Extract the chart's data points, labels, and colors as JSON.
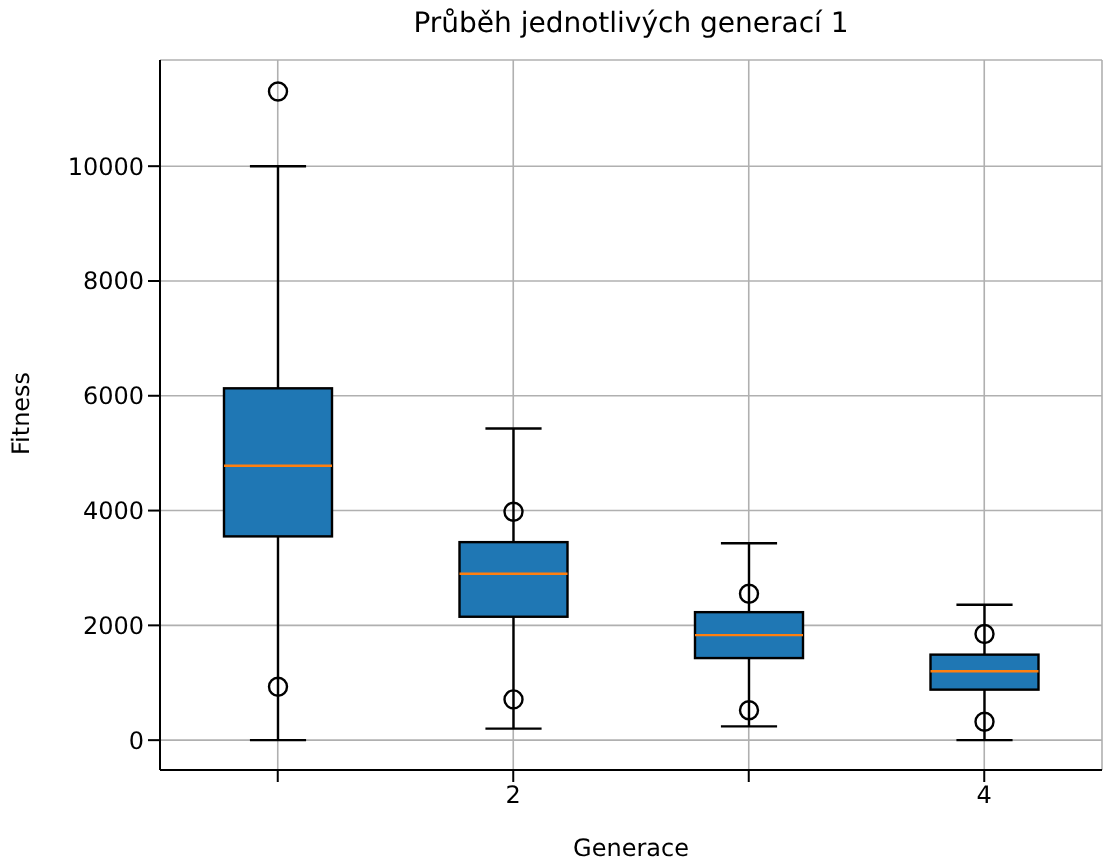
{
  "chart_data": {
    "type": "box",
    "title": "Průběh jednotlivých generací 1",
    "xlabel": "Generace",
    "ylabel": "Fitness",
    "categories": [
      null,
      "2",
      null,
      "4"
    ],
    "color": "#1f77b4",
    "boxes": [
      {
        "low": 0,
        "q1": 3550,
        "median": 4780,
        "q3": 6130,
        "high": 10000,
        "outliers": [
          11300,
          930
        ]
      },
      {
        "low": 200,
        "q1": 2150,
        "median": 2900,
        "q3": 3450,
        "high": 5430,
        "outliers": [
          3980,
          710
        ]
      },
      {
        "low": 240,
        "q1": 1430,
        "median": 1830,
        "q3": 2230,
        "high": 3430,
        "outliers": [
          2550,
          520
        ]
      },
      {
        "low": 0,
        "q1": 880,
        "median": 1200,
        "q3": 1490,
        "high": 2360,
        "outliers": [
          1850,
          320
        ]
      }
    ],
    "ylim": [
      -520,
      11850
    ],
    "yticks": [
      0,
      2000,
      4000,
      6000,
      8000,
      10000
    ],
    "grid": true
  }
}
